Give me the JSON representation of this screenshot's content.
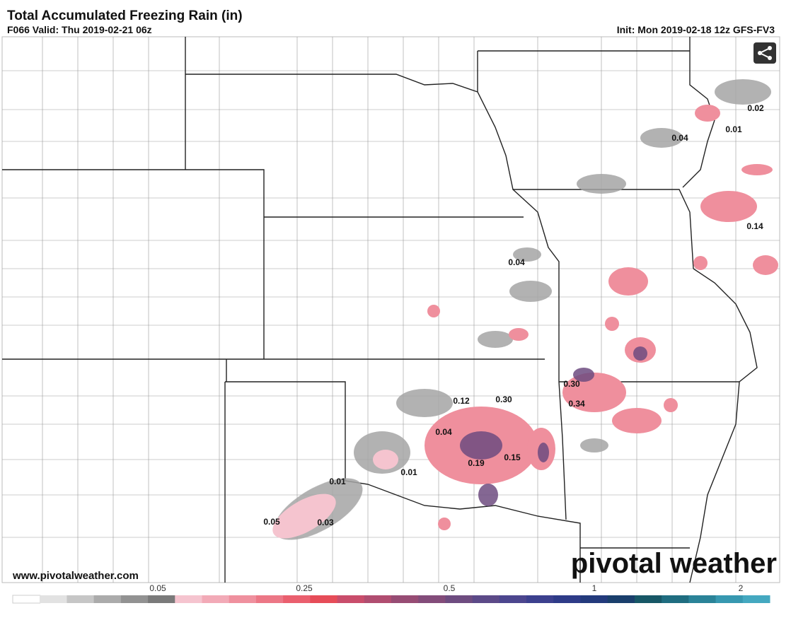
{
  "header": {
    "title": "Total Accumulated Freezing Rain (in)",
    "valid": "F066 Valid: Thu 2019-02-21 06z",
    "init": "Init: Mon 2019-02-18 12z GFS-FV3"
  },
  "map": {
    "point_labels": [
      "0.02",
      "0.01",
      "0.04",
      "0.14",
      "0.04",
      "0.30",
      "0.34",
      "0.12",
      "0.30",
      "0.04",
      "0.19",
      "0.15",
      "0.01",
      "0.01",
      "0.05",
      "0.03"
    ],
    "website": "www.pivotalweather.com",
    "watermark": "pivotal weather"
  },
  "legend": {
    "colors": [
      "#ffffff",
      "#e2e2e2",
      "#c6c6c6",
      "#ababab",
      "#929292",
      "#7a7a7a",
      "#f5c4cf",
      "#f2aab7",
      "#ef909e",
      "#ec7786",
      "#ea5f6e",
      "#e64c58",
      "#c94d6b",
      "#b04d70",
      "#974c74",
      "#834c7a",
      "#6e4c80",
      "#5c4a88",
      "#4c468e",
      "#3c408e",
      "#2e3b88",
      "#233a7c",
      "#1a3f6c",
      "#175766",
      "#1f6d80",
      "#2a8398",
      "#3798b0",
      "#44a8c0"
    ],
    "ticks": [
      "0.05",
      "0.25",
      "0.5",
      "1",
      "2"
    ]
  }
}
